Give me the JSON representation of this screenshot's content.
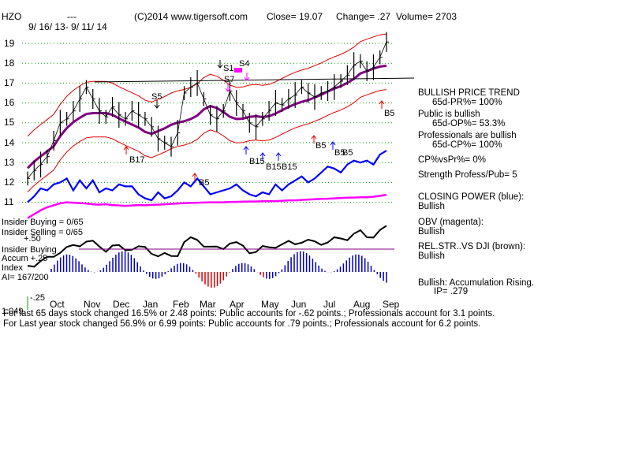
{
  "header": {
    "symbol": "HZO",
    "dashes": "---",
    "copyright": "(C)2014 www.tigersoft.com",
    "close": "Close=  19.07",
    "change": "Change= .27",
    "volume": "Volume= 2703",
    "date_range": "9/ 16/ 13- 9/ 11/ 14"
  },
  "price_ticks": [
    "19",
    "18",
    "17",
    "16",
    "15",
    "14",
    "13",
    "12",
    "11"
  ],
  "month_labels": [
    "Oct",
    "Nov",
    "Dec",
    "Jan",
    "Feb",
    "Mar",
    "Apr",
    "May",
    "Jun",
    "Jul",
    "Aug",
    "Sep"
  ],
  "signals": {
    "s5": "S5",
    "s1": "S1",
    "s4": "S4",
    "s7": "S7",
    "b17": "B17",
    "b5a": "B5",
    "b15a": "B15",
    "b15b": "B15",
    "b15c": "B15",
    "b5b": "B5",
    "b5c": "B5",
    "b5d": "B5",
    "b5e": "B5"
  },
  "left_labels": {
    "insider_buying": "Insider Buying = 0/65",
    "insider_selling": "Insider Selling = 0/65",
    "plus50": "+.50",
    "insider_buying2": "Insider Buying",
    "accum": "Accum  +.25",
    "index": "Index",
    "ai": "AI= 167/200",
    "minus25": "-.25",
    "num": "1.049"
  },
  "side_panel": {
    "trend_title": "BULLISH PRICE TREND",
    "pr": "65d-PR%= 100%",
    "public_bullish": "Public is bullish",
    "op": "65d-OP%= 53.3%",
    "pros_bullish": "Professionals are bullish",
    "cp": "65d-CP%= 100%",
    "cpvspr": "CP%vsPr%=  0%",
    "strength": "Strength Profess/Pub= 5",
    "closing_power": "CLOSING POWER (blue):",
    "cp_bullish": "Bullish",
    "obv": "OBV (magenta):",
    "obv_bullish": "Bullish",
    "relstr": "REL.STR..VS DJI (brown):",
    "relstr_bullish": "Bullish",
    "accum_rising": "Bullish: Accumulation Rising.",
    "ip": "IP=  .279"
  },
  "footer": {
    "line1": "For last 65 days stock changed  16.5% or  2.48 points:  Public accounts for -.62 points.;  Professionals account for  3.1 points.",
    "line2": "For Last year stock changed  56.9% or  6.99 points:  Public accounts for  .79 points.;  Professionals account for  6.2 points."
  },
  "colors": {
    "price": "#000000",
    "bands": "#e00000",
    "ma": "#800080",
    "closing_power": "#0000ff",
    "obv": "#ff00ff",
    "accum": "#0000c0",
    "accum_neg": "#e00000",
    "grid": "#00a000"
  },
  "chart_data": {
    "type": "line",
    "title": "HZO",
    "ylim": [
      10.5,
      19.6
    ],
    "x_range": [
      "9/16/13",
      "9/11/14"
    ],
    "months": [
      "Oct",
      "Nov",
      "Dec",
      "Jan",
      "Feb",
      "Mar",
      "Apr",
      "May",
      "Jun",
      "Jul",
      "Aug",
      "Sep"
    ],
    "series": [
      {
        "name": "Price",
        "values": [
          12.2,
          12.6,
          12.9,
          13.3,
          14.1,
          15.0,
          15.2,
          15.6,
          16.2,
          16.8,
          16.2,
          15.6,
          15.3,
          15.8,
          15.4,
          15.2,
          15.6,
          15.4,
          15.2,
          14.8,
          14.2,
          14.0,
          13.8,
          14.5,
          16.5,
          16.8,
          17.0,
          16.2,
          15.4,
          15.2,
          15.6,
          16.6,
          16.0,
          15.6,
          15.0,
          14.8,
          15.2,
          15.6,
          16.0,
          15.9,
          16.2,
          16.4,
          16.8,
          16.5,
          16.3,
          16.5,
          16.6,
          16.8,
          17.1,
          17.4,
          17.9,
          18.1,
          17.6,
          17.8,
          18.3,
          19.07
        ]
      },
      {
        "name": "Closing Power",
        "values": [
          11.0,
          11.3,
          11.7,
          11.6,
          11.9,
          12.0,
          12.2,
          11.6,
          12.1,
          11.7,
          12.1,
          11.5,
          11.7,
          11.6,
          11.9,
          11.8,
          11.8,
          11.4,
          11.2,
          11.1,
          11.5,
          11.2,
          11.3,
          11.6,
          12.0,
          11.8,
          12.2,
          11.8,
          11.4,
          11.5,
          11.6,
          11.7,
          11.9,
          11.6,
          11.4,
          11.3,
          11.5,
          11.4,
          11.9,
          11.6,
          11.9,
          12.1,
          12.3,
          12.0,
          12.2,
          12.5,
          12.8,
          12.7,
          12.5,
          12.9,
          13.1,
          13.0,
          13.1,
          12.9,
          13.4,
          13.6
        ]
      },
      {
        "name": "OBV",
        "values": [
          10.2,
          10.4,
          10.6,
          10.75,
          10.85,
          10.95,
          11.0,
          10.98,
          10.96,
          10.94,
          10.9,
          10.88,
          10.9,
          10.86,
          10.84,
          10.82,
          10.84,
          10.86,
          10.85,
          10.87,
          10.88,
          10.9,
          10.92,
          10.94,
          10.96,
          10.97,
          10.98,
          10.99,
          11.0,
          11.0,
          11.0,
          11.02,
          11.02,
          11.03,
          11.04,
          11.04,
          11.05,
          11.05,
          11.06,
          11.07,
          11.1,
          11.1,
          11.12,
          11.14,
          11.15,
          11.17,
          11.18,
          11.2,
          11.22,
          11.23,
          11.24,
          11.25,
          11.25,
          11.28,
          11.32,
          11.38
        ]
      }
    ]
  }
}
